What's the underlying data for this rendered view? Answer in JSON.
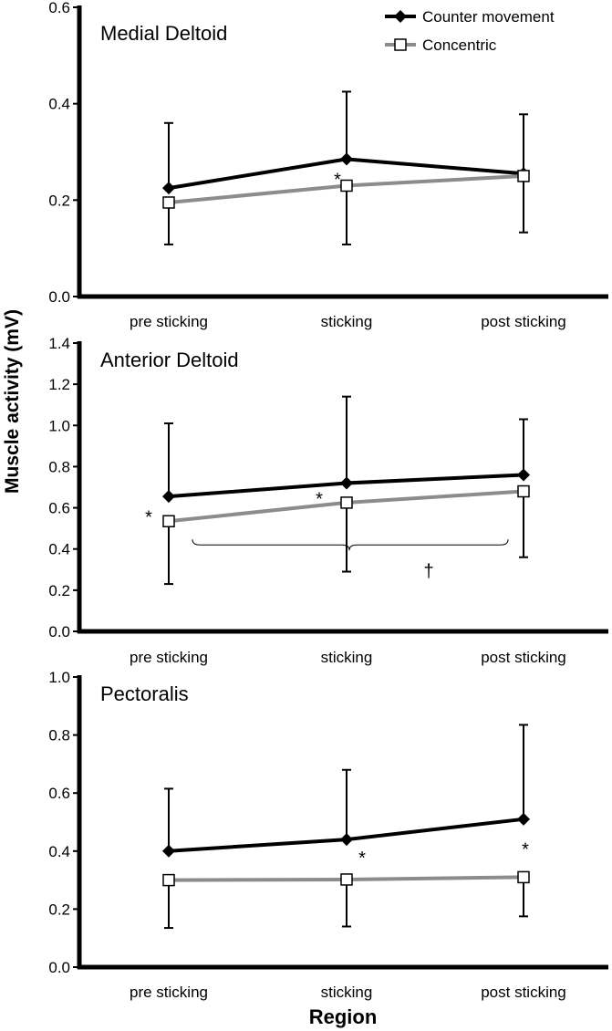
{
  "figure": {
    "ylabel": "Muscle activity (mV)",
    "xlabel": "Region"
  },
  "legend": {
    "items": [
      {
        "label": "Counter movement",
        "color": "#000000",
        "marker": "filled-diamond"
      },
      {
        "label": "Concentric",
        "color": "#8c8c8c",
        "marker": "open-square"
      }
    ]
  },
  "chart_data": [
    {
      "type": "line",
      "title": "Medial Deltoid",
      "categories": [
        "pre sticking",
        "sticking",
        "post sticking"
      ],
      "ylim": [
        0,
        0.6
      ],
      "ytick_labels": [
        "0.0",
        "0.2",
        "0.4",
        "0.6"
      ],
      "series": [
        {
          "name": "Counter movement",
          "color": "#000000",
          "values": [
            0.225,
            0.285,
            0.255
          ],
          "error_upper": [
            0.36,
            0.425,
            0.378
          ]
        },
        {
          "name": "Concentric",
          "color": "#8c8c8c",
          "values": [
            0.195,
            0.23,
            0.25
          ],
          "error_lower": [
            0.108,
            0.108,
            0.133
          ]
        }
      ],
      "annotations": [
        {
          "text": "*",
          "category": "sticking",
          "value": 0.245
        }
      ]
    },
    {
      "type": "line",
      "title": "Anterior Deltoid",
      "categories": [
        "pre sticking",
        "sticking",
        "post sticking"
      ],
      "ylim": [
        0,
        1.4
      ],
      "ytick_labels": [
        "0.0",
        "0.2",
        "0.4",
        "0.6",
        "0.8",
        "1.0",
        "1.2",
        "1.4"
      ],
      "series": [
        {
          "name": "Counter movement",
          "color": "#000000",
          "values": [
            0.655,
            0.72,
            0.76
          ],
          "error_upper": [
            1.01,
            1.14,
            1.03
          ]
        },
        {
          "name": "Concentric",
          "color": "#8c8c8c",
          "values": [
            0.535,
            0.625,
            0.68
          ],
          "error_lower": [
            0.23,
            0.29,
            0.36
          ]
        }
      ],
      "annotations": [
        {
          "text": "*",
          "category": "pre sticking",
          "value": 0.56,
          "side": "left"
        },
        {
          "text": "*",
          "category": "sticking",
          "value": 0.65,
          "side": "left"
        },
        {
          "text": "†",
          "category": "between sticking and post sticking",
          "value": 0.3
        }
      ],
      "brace": {
        "from": "pre sticking",
        "to": "post sticking",
        "value": 0.42
      }
    },
    {
      "type": "line",
      "title": "Pectoralis",
      "categories": [
        "pre sticking",
        "sticking",
        "post sticking"
      ],
      "ylim": [
        0,
        1.0
      ],
      "ytick_labels": [
        "0.0",
        "0.2",
        "0.4",
        "0.6",
        "0.8",
        "1.0"
      ],
      "series": [
        {
          "name": "Counter movement",
          "color": "#000000",
          "values": [
            0.4,
            0.44,
            0.51
          ],
          "error_upper": [
            0.615,
            0.68,
            0.835
          ]
        },
        {
          "name": "Concentric",
          "color": "#8c8c8c",
          "values": [
            0.3,
            0.302,
            0.31
          ],
          "error_lower": [
            0.135,
            0.14,
            0.175
          ]
        }
      ],
      "annotations": [
        {
          "text": "*",
          "category": "sticking",
          "value": 0.38
        },
        {
          "text": "*",
          "category": "post sticking",
          "value": 0.41
        }
      ]
    }
  ]
}
